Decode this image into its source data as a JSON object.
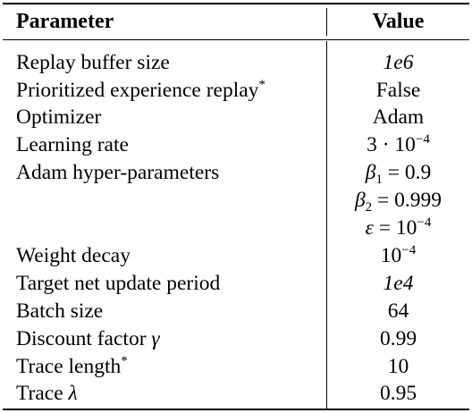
{
  "table": {
    "headers": {
      "parameter": "Parameter",
      "value": "Value"
    },
    "rows": [
      {
        "parameter": "Replay buffer size",
        "value": "1e6"
      },
      {
        "parameter": "Prioritized experience replay",
        "parameter_mark": "*",
        "value": "False"
      },
      {
        "parameter": "Optimizer",
        "value": "Adam"
      },
      {
        "parameter": "Learning rate",
        "value_parts": [
          "3 · 10",
          "−4"
        ]
      },
      {
        "parameter": "Adam hyper-parameters",
        "value_lines": [
          {
            "sym": "β",
            "sub": "1",
            "rest": " = 0.9"
          },
          {
            "sym": "β",
            "sub": "2",
            "rest": " = 0.999"
          },
          {
            "sym": "ε",
            "rest": " = 10",
            "sup": "−4"
          }
        ]
      },
      {
        "parameter": "Weight decay",
        "value_parts": [
          "10",
          "−4"
        ]
      },
      {
        "parameter": "Target net update period",
        "value": "1e4"
      },
      {
        "parameter": "Batch size",
        "value": "64"
      },
      {
        "parameter": "Discount factor",
        "parameter_symbol": "γ",
        "value": "0.99"
      },
      {
        "parameter": "Trace length",
        "parameter_mark": "*",
        "value": "10"
      },
      {
        "parameter": "Trace",
        "parameter_symbol": "λ",
        "value": "0.95"
      }
    ]
  }
}
